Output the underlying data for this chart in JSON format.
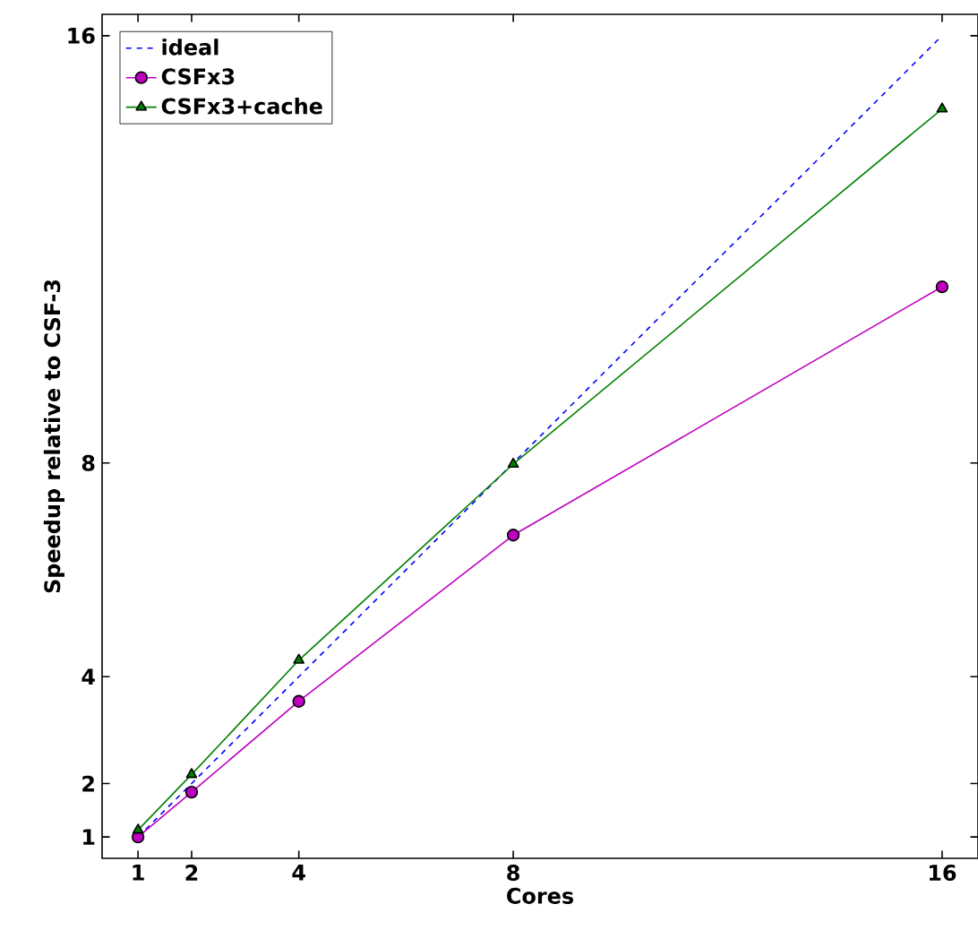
{
  "chart_data": {
    "type": "line",
    "xlabel": "Cores",
    "ylabel": "Speedup relative to CSF-3",
    "x": [
      1,
      2,
      4,
      8,
      16
    ],
    "series": [
      {
        "name": "ideal",
        "color": "#0000ff",
        "values": [
          1,
          2,
          4,
          8,
          16
        ],
        "line_style": "dashed",
        "marker": "none"
      },
      {
        "name": "CSFx3",
        "color": "#bf00bf",
        "values": [
          1.0,
          1.84,
          3.54,
          6.65,
          11.3
        ],
        "line_style": "solid",
        "marker": "circle"
      },
      {
        "name": "CSFx3+cache",
        "color": "#008000",
        "values": [
          1.13,
          2.17,
          4.31,
          7.98,
          14.63
        ],
        "line_style": "solid",
        "marker": "triangle"
      }
    ],
    "xlim": [
      0.33,
      16.67
    ],
    "ylim": [
      0.6,
      16.4
    ],
    "xticks": [
      1,
      2,
      4,
      8,
      16
    ],
    "yticks": [
      1,
      2,
      4,
      8,
      16
    ],
    "grid": false,
    "legend": "top left"
  }
}
